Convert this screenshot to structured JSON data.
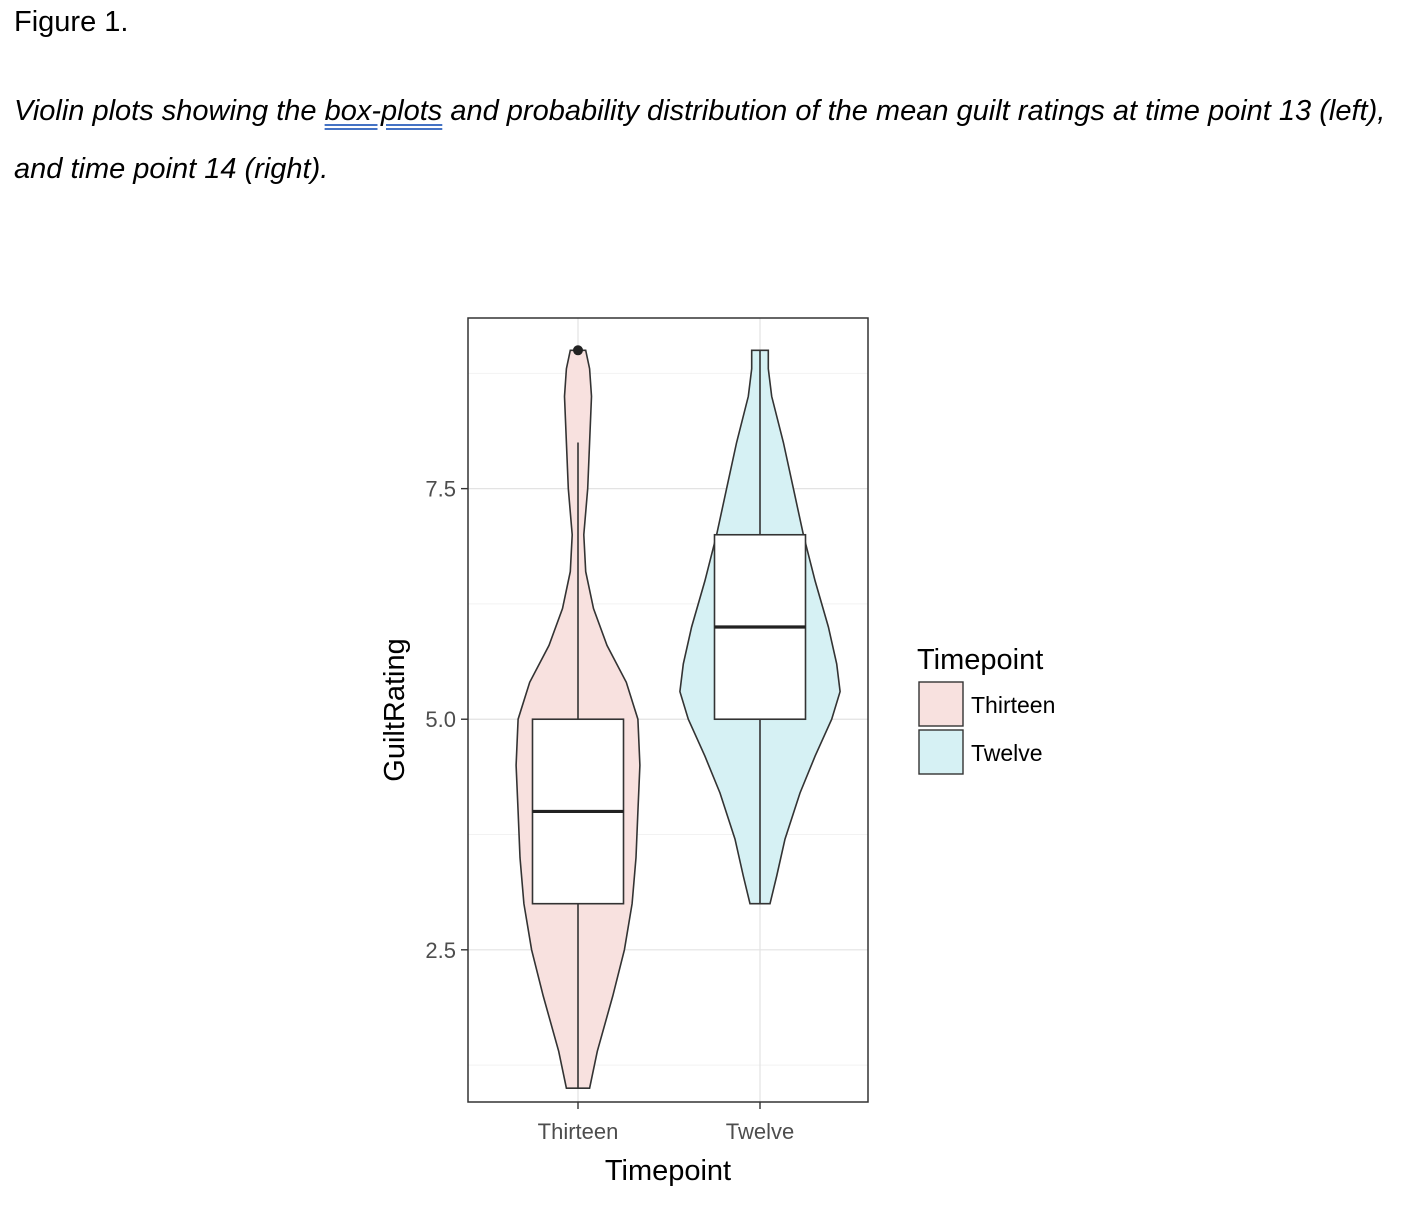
{
  "figure": {
    "label": "Figure 1.",
    "caption_before": "Violin plots showing the ",
    "caption_spell": "box-plots",
    "caption_after": " and probability distribution of the mean guilt ratings at time point 13 (left), and time point 14 (right)."
  },
  "chart_data": {
    "type": "violin",
    "title": "",
    "xlabel": "Timepoint",
    "ylabel": "GuiltRating",
    "ylim": [
      0.85,
      9.35
    ],
    "yticks": [
      2.5,
      5.0,
      7.5
    ],
    "ytick_labels": [
      "2.5",
      "5.0",
      "7.5"
    ],
    "grid": true,
    "legend": {
      "title": "Timepoint",
      "placement": "right",
      "entries": [
        "Thirteen",
        "Twelve"
      ]
    },
    "categories": [
      "Thirteen",
      "Twelve"
    ],
    "series": [
      {
        "name": "Thirteen",
        "fill": "#f8e1df",
        "box": {
          "min": 1.0,
          "q1": 3.0,
          "median": 4.0,
          "q3": 5.0,
          "whisker_max": 8.0
        },
        "outliers": [
          9.0
        ],
        "violin_max_halfwidth": 0.34,
        "density_profile": [
          [
            1.0,
            0.12
          ],
          [
            1.4,
            0.2
          ],
          [
            2.0,
            0.36
          ],
          [
            2.5,
            0.48
          ],
          [
            3.0,
            0.56
          ],
          [
            3.5,
            0.6
          ],
          [
            4.0,
            0.62
          ],
          [
            4.5,
            0.64
          ],
          [
            5.0,
            0.62
          ],
          [
            5.4,
            0.5
          ],
          [
            5.8,
            0.3
          ],
          [
            6.2,
            0.16
          ],
          [
            6.6,
            0.08
          ],
          [
            7.0,
            0.06
          ],
          [
            7.5,
            0.1
          ],
          [
            8.0,
            0.12
          ],
          [
            8.5,
            0.14
          ],
          [
            8.8,
            0.12
          ],
          [
            9.0,
            0.08
          ]
        ]
      },
      {
        "name": "Twelve",
        "fill": "#d6f1f4",
        "box": {
          "min": 3.0,
          "q1": 5.0,
          "median": 6.0,
          "q3": 7.0,
          "max": 9.0
        },
        "outliers": [],
        "violin_max_halfwidth": 0.44,
        "density_profile": [
          [
            3.0,
            0.12
          ],
          [
            3.3,
            0.2
          ],
          [
            3.7,
            0.3
          ],
          [
            4.2,
            0.48
          ],
          [
            4.6,
            0.66
          ],
          [
            5.0,
            0.86
          ],
          [
            5.3,
            0.96
          ],
          [
            5.6,
            0.92
          ],
          [
            6.0,
            0.82
          ],
          [
            6.5,
            0.66
          ],
          [
            7.0,
            0.52
          ],
          [
            7.5,
            0.4
          ],
          [
            8.0,
            0.28
          ],
          [
            8.5,
            0.14
          ],
          [
            8.8,
            0.1
          ],
          [
            9.0,
            0.1
          ]
        ]
      }
    ]
  }
}
